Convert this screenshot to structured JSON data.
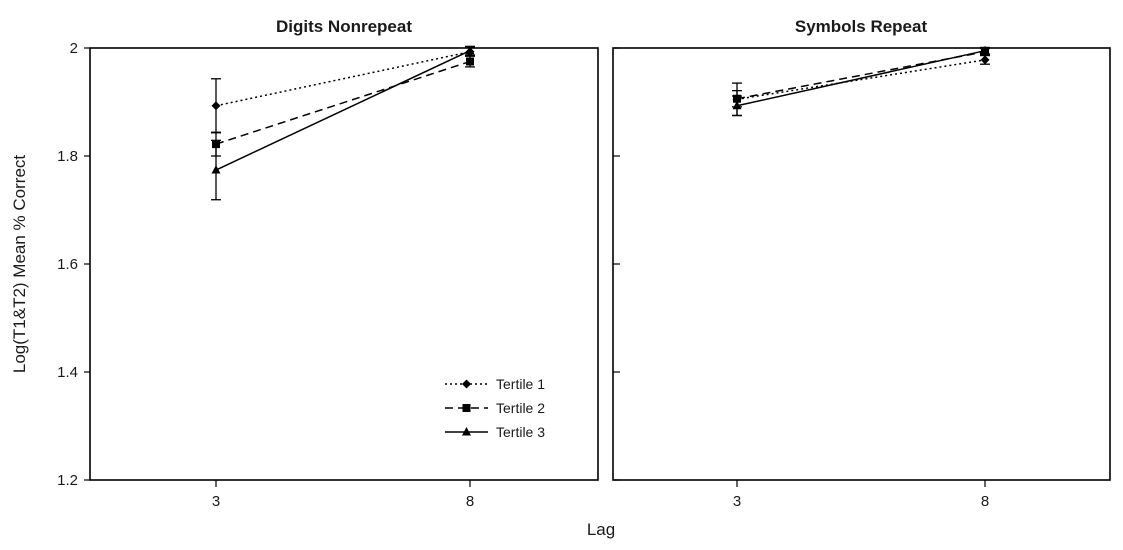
{
  "chart_data": {
    "type": "line",
    "xlabel": "Lag",
    "ylabel": "Log(T1&T2) Mean % Correct",
    "ylim": [
      1.2,
      2.0
    ],
    "yticks": [
      "1.2",
      "1.4",
      "1.6",
      "1.8",
      "2"
    ],
    "categories": [
      "3",
      "8"
    ],
    "legend_placement": "bottom-right of first panel",
    "panels": [
      {
        "title": "Digits Nonrepeat",
        "series": [
          {
            "name": "Tertile 1",
            "values": [
              1.893,
              1.993
            ],
            "error": [
              0.05,
              0.008
            ],
            "line_style": "dotted",
            "marker": "diamond"
          },
          {
            "name": "Tertile 2",
            "values": [
              1.822,
              1.975
            ],
            "error": [
              0.022,
              0.01
            ],
            "line_style": "dashed",
            "marker": "square"
          },
          {
            "name": "Tertile 3",
            "values": [
              1.774,
              1.995
            ],
            "error": [
              0.055,
              0.008
            ],
            "line_style": "solid",
            "marker": "triangle"
          }
        ]
      },
      {
        "title": "Symbols Repeat",
        "series": [
          {
            "name": "Tertile 1",
            "values": [
              1.905,
              1.978
            ],
            "error": [
              0.03,
              0.008
            ],
            "line_style": "dotted",
            "marker": "diamond"
          },
          {
            "name": "Tertile 2",
            "values": [
              1.906,
              1.993
            ],
            "error": [
              0.015,
              0.006
            ],
            "line_style": "dashed",
            "marker": "square"
          },
          {
            "name": "Tertile 3",
            "values": [
              1.893,
              1.995
            ],
            "error": [
              0.018,
              0.006
            ],
            "line_style": "solid",
            "marker": "triangle"
          }
        ]
      }
    ]
  }
}
